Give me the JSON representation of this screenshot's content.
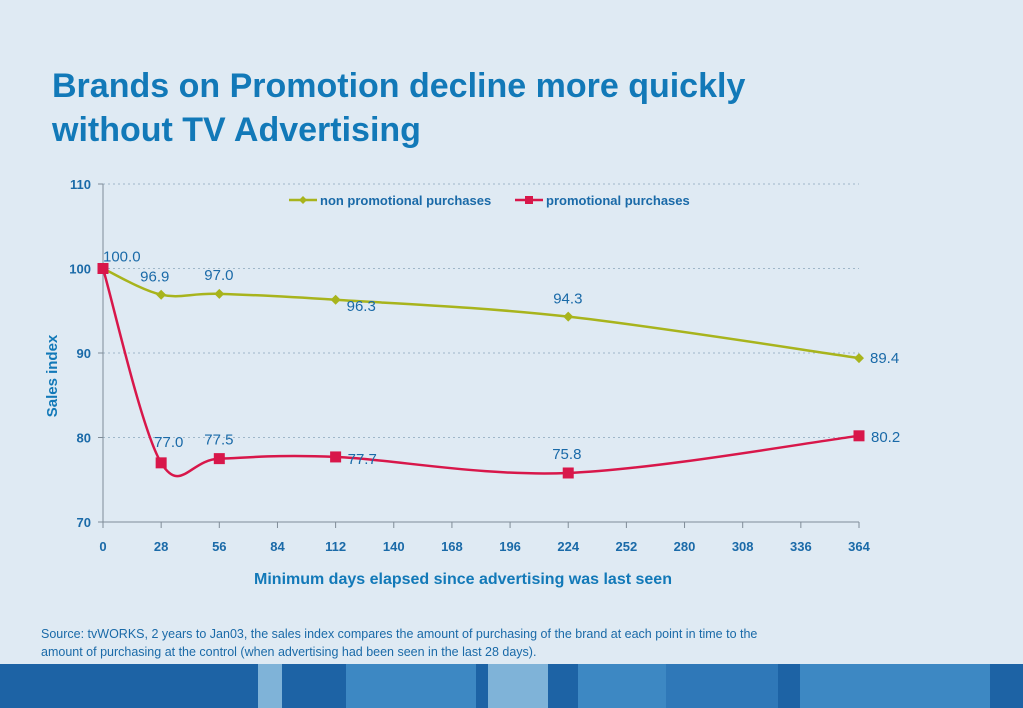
{
  "title_lines": [
    "Brands on Promotion decline more quickly",
    "without TV Advertising"
  ],
  "source_lines": [
    "Source: tvWORKS, 2 years to Jan03, the sales index compares the amount of purchasing of the brand at each point in time to the",
    "amount of purchasing at the control (when advertising had been seen in the last 28 days)."
  ],
  "chart_data": {
    "type": "line",
    "xlabel": "Minimum days elapsed since advertising was last seen",
    "ylabel": "Sales index",
    "xlim": [
      0,
      364
    ],
    "ylim": [
      70,
      110
    ],
    "xticks": [
      0,
      28,
      56,
      84,
      112,
      140,
      168,
      196,
      224,
      252,
      280,
      308,
      336,
      364
    ],
    "yticks": [
      70,
      80,
      90,
      100,
      110
    ],
    "grid": true,
    "legend_position": "top-center",
    "series": [
      {
        "name": "non promotional purchases",
        "color": "#a8b41c",
        "marker": "diamond",
        "x": [
          0,
          28,
          56,
          112,
          224,
          364
        ],
        "y": [
          100.0,
          96.9,
          97.0,
          96.3,
          94.3,
          89.4
        ],
        "labels": [
          "100.0",
          "96.9",
          "97.0",
          "96.3",
          "94.3",
          "89.4"
        ]
      },
      {
        "name": "promotional purchases",
        "color": "#d8174a",
        "marker": "square",
        "x": [
          0,
          28,
          56,
          112,
          224,
          364
        ],
        "y": [
          100.0,
          77.0,
          77.5,
          77.7,
          75.8,
          80.2
        ],
        "labels": [
          "",
          "77.0",
          "77.5",
          "77.7",
          "75.8",
          "80.2"
        ]
      }
    ]
  },
  "colors": {
    "background": "#dfeaf3",
    "title": "#1279b8",
    "axis_text": "#1a6aa8",
    "grid": "#9fb7c9"
  }
}
